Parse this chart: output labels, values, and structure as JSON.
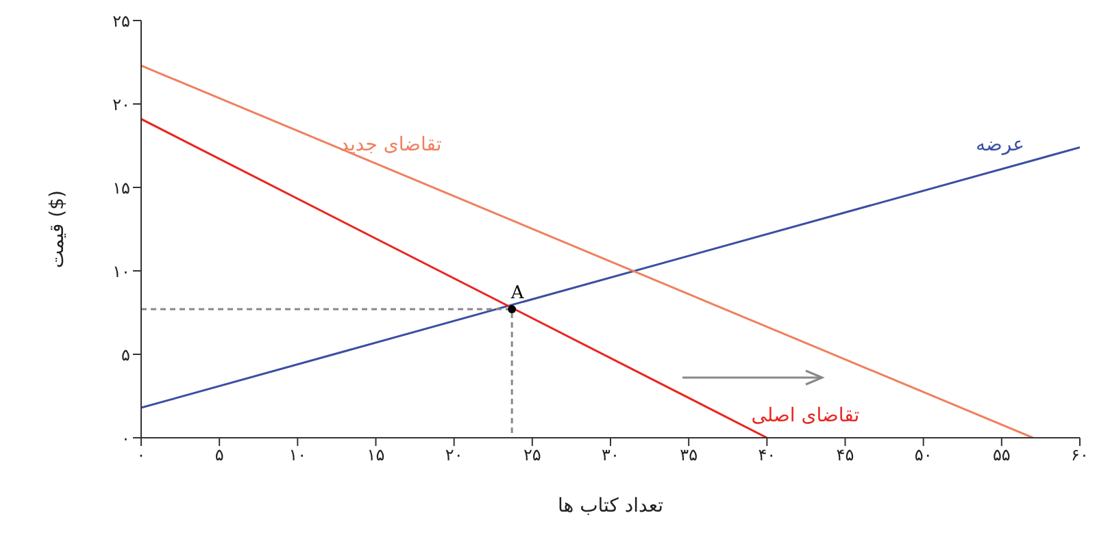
{
  "chart_data": {
    "type": "line",
    "xlabel": "تعداد کتاب ها",
    "ylabel": "قیمت ($)",
    "xlim": [
      0,
      60
    ],
    "ylim": [
      0,
      25
    ],
    "xticks": [
      {
        "value": 0,
        "label": "۰"
      },
      {
        "value": 5,
        "label": "۵"
      },
      {
        "value": 10,
        "label": "۱۰"
      },
      {
        "value": 15,
        "label": "۱۵"
      },
      {
        "value": 20,
        "label": "۲۰"
      },
      {
        "value": 25,
        "label": "۲۵"
      },
      {
        "value": 30,
        "label": "۳۰"
      },
      {
        "value": 35,
        "label": "۳۵"
      },
      {
        "value": 40,
        "label": "۴۰"
      },
      {
        "value": 45,
        "label": "۴۵"
      },
      {
        "value": 50,
        "label": "۵۰"
      },
      {
        "value": 55,
        "label": "۵۵"
      },
      {
        "value": 60,
        "label": "۶۰"
      }
    ],
    "yticks": [
      {
        "value": 0,
        "label": "۰"
      },
      {
        "value": 5,
        "label": "۵"
      },
      {
        "value": 10,
        "label": "۱۰"
      },
      {
        "value": 15,
        "label": "۱۵"
      },
      {
        "value": 20,
        "label": "۲۰"
      },
      {
        "value": 25,
        "label": "۲۵"
      }
    ],
    "marker": "none",
    "line_style": "solid",
    "series": [
      {
        "name": "عرضه",
        "color": "#3b4ea3",
        "x": [
          0,
          60
        ],
        "values": [
          1.8,
          17.4
        ]
      },
      {
        "name": "تقاضای اصلی",
        "color": "#e8261f",
        "x": [
          0,
          40
        ],
        "values": [
          19.1,
          0
        ]
      },
      {
        "name": "تقاضای جدید",
        "color": "#f0805e",
        "x": [
          0,
          57
        ],
        "values": [
          22.3,
          0
        ]
      },
      {
        "type": "line",
        "color": "#888888",
        "line_style": "dashed",
        "x": [
          0,
          23.7,
          23.7
        ],
        "values": [
          7.7,
          7.7,
          0
        ]
      },
      {
        "type": "scatter",
        "color": "#000000",
        "marker": "circle",
        "x": [
          23.7
        ],
        "values": [
          7.7
        ]
      }
    ],
    "annotations": [
      {
        "text": "A",
        "x": 23.7,
        "y": 7.7
      }
    ]
  }
}
